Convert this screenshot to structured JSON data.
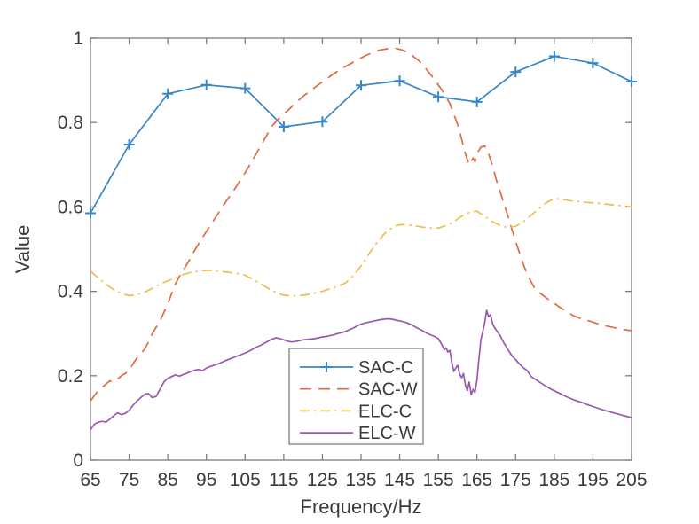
{
  "figure": {
    "background": "#ffffff",
    "axis_color": "#7c7c7c",
    "tick_text_color": "#3a3a3a",
    "label_text_color": "#3a3a3a",
    "legend_border_color": "#7c7c7c",
    "legend_background": "#ffffff"
  },
  "chart_data": {
    "type": "line",
    "title": "",
    "xlabel": "Frequency/Hz",
    "ylabel": "Value",
    "xlim": [
      65,
      205
    ],
    "ylim": [
      0,
      1
    ],
    "xticks": [
      65,
      75,
      85,
      95,
      105,
      115,
      125,
      135,
      145,
      155,
      165,
      175,
      185,
      195,
      205
    ],
    "xtick_labels": [
      "65",
      "75",
      "85",
      "95",
      "105",
      "115",
      "125",
      "135",
      "145",
      "155",
      "165",
      "175",
      "185",
      "195",
      "205"
    ],
    "yticks": [
      0,
      0.2,
      0.4,
      0.6,
      0.8,
      1
    ],
    "ytick_labels": [
      "0",
      "0.2",
      "0.4",
      "0.6",
      "0.8",
      "1"
    ],
    "grid": false,
    "box": true,
    "tick_direction": "in",
    "legend": {
      "position": "inside-bottom-center",
      "border": true,
      "entries": [
        "SAC-C",
        "SAC-W",
        "ELC-C",
        "ELC-W"
      ]
    },
    "series": [
      {
        "name": "SAC-C",
        "color": "#3787c9",
        "line_style": "solid",
        "marker": "plus",
        "x": [
          65,
          75,
          85,
          95,
          105,
          115,
          125,
          135,
          145,
          155,
          165,
          175,
          185,
          195,
          205
        ],
        "y": [
          0.585,
          0.748,
          0.868,
          0.889,
          0.881,
          0.79,
          0.802,
          0.888,
          0.899,
          0.861,
          0.849,
          0.92,
          0.957,
          0.941,
          0.897
        ]
      },
      {
        "name": "SAC-W",
        "color": "#e06a42",
        "line_style": "dashed",
        "marker": "none",
        "x": [
          65,
          66,
          67,
          68,
          69,
          70,
          71,
          72,
          73,
          74,
          75,
          76,
          77,
          78,
          79,
          80,
          81,
          82,
          83,
          84,
          85,
          86,
          87,
          88,
          89,
          90,
          91,
          92,
          94,
          96,
          98,
          100,
          102,
          104,
          106,
          108,
          110,
          112,
          114,
          116,
          118,
          120,
          122,
          124,
          126,
          128,
          130,
          132,
          134,
          136,
          138,
          140,
          142,
          144,
          146,
          148,
          150,
          152,
          154,
          156,
          158,
          160,
          161,
          162,
          163,
          164,
          164.5,
          165,
          166,
          167,
          168,
          169,
          170,
          171,
          172,
          173,
          174,
          175,
          176,
          177,
          178,
          179,
          180,
          181,
          182,
          183,
          184,
          185,
          186,
          187,
          188,
          190,
          192,
          194,
          196,
          198,
          200,
          202,
          204,
          205
        ],
        "y": [
          0.14,
          0.153,
          0.165,
          0.172,
          0.18,
          0.188,
          0.185,
          0.192,
          0.2,
          0.205,
          0.213,
          0.228,
          0.242,
          0.252,
          0.263,
          0.28,
          0.3,
          0.315,
          0.33,
          0.35,
          0.37,
          0.395,
          0.418,
          0.435,
          0.45,
          0.465,
          0.48,
          0.498,
          0.528,
          0.556,
          0.584,
          0.612,
          0.638,
          0.666,
          0.696,
          0.728,
          0.76,
          0.792,
          0.812,
          0.828,
          0.846,
          0.862,
          0.876,
          0.89,
          0.903,
          0.916,
          0.928,
          0.938,
          0.948,
          0.958,
          0.966,
          0.972,
          0.975,
          0.976,
          0.971,
          0.961,
          0.946,
          0.925,
          0.902,
          0.876,
          0.845,
          0.795,
          0.762,
          0.726,
          0.7,
          0.716,
          0.706,
          0.726,
          0.742,
          0.745,
          0.726,
          0.698,
          0.664,
          0.636,
          0.608,
          0.578,
          0.548,
          0.519,
          0.491,
          0.464,
          0.441,
          0.423,
          0.406,
          0.398,
          0.391,
          0.384,
          0.378,
          0.372,
          0.365,
          0.359,
          0.353,
          0.342,
          0.335,
          0.33,
          0.324,
          0.319,
          0.315,
          0.311,
          0.308,
          0.307
        ]
      },
      {
        "name": "ELC-C",
        "color": "#f0bd49",
        "line_style": "dashdot",
        "marker": "none",
        "x": [
          65,
          67,
          69,
          71,
          73,
          75,
          77,
          79,
          81,
          83,
          85,
          87,
          89,
          91,
          93,
          95,
          97,
          99,
          101,
          103,
          105,
          107,
          109,
          111,
          113,
          115,
          117,
          119,
          121,
          123,
          125,
          127,
          129,
          131,
          133,
          135,
          137,
          139,
          141,
          143,
          145,
          147,
          149,
          151,
          153,
          155,
          157,
          159,
          161,
          163,
          165,
          167,
          169,
          171,
          173,
          175,
          177,
          179,
          181,
          183,
          185,
          187,
          189,
          191,
          193,
          195,
          197,
          199,
          201,
          203,
          205
        ],
        "y": [
          0.448,
          0.432,
          0.417,
          0.404,
          0.395,
          0.39,
          0.392,
          0.398,
          0.407,
          0.417,
          0.425,
          0.432,
          0.44,
          0.445,
          0.448,
          0.45,
          0.449,
          0.447,
          0.445,
          0.442,
          0.438,
          0.429,
          0.418,
          0.407,
          0.397,
          0.391,
          0.389,
          0.39,
          0.392,
          0.396,
          0.4,
          0.406,
          0.412,
          0.42,
          0.437,
          0.46,
          0.488,
          0.514,
          0.536,
          0.551,
          0.558,
          0.558,
          0.555,
          0.552,
          0.55,
          0.55,
          0.556,
          0.565,
          0.578,
          0.587,
          0.59,
          0.578,
          0.565,
          0.556,
          0.551,
          0.554,
          0.565,
          0.58,
          0.596,
          0.61,
          0.62,
          0.618,
          0.615,
          0.613,
          0.611,
          0.61,
          0.608,
          0.606,
          0.604,
          0.602,
          0.6
        ]
      },
      {
        "name": "ELC-W",
        "color": "#9b59ae",
        "line_style": "solid",
        "marker": "none",
        "x": [
          65,
          66,
          67,
          68,
          69,
          70,
          71,
          72,
          73,
          74,
          75,
          76,
          77,
          78,
          79,
          80,
          81,
          82,
          83,
          84,
          85,
          86,
          87,
          88,
          89,
          90,
          91,
          92,
          93,
          94,
          95,
          96,
          97,
          98,
          99,
          100,
          101,
          102,
          103,
          104,
          105,
          106,
          107,
          108,
          109,
          110,
          111,
          112,
          113,
          114,
          115,
          116,
          117,
          118,
          119,
          120,
          121,
          122,
          123,
          124,
          125,
          126,
          127,
          128,
          129,
          130,
          131,
          132,
          133,
          134,
          135,
          136,
          137,
          138,
          139,
          140,
          141,
          142,
          143,
          144,
          145,
          146,
          147,
          148,
          149,
          150,
          151,
          152,
          153,
          154,
          155,
          155.5,
          156,
          156.5,
          157,
          157.5,
          158,
          158.5,
          159,
          159.5,
          160,
          160.5,
          161,
          161.5,
          162,
          162.5,
          163,
          163.5,
          164,
          164.5,
          165,
          165.5,
          166,
          166.5,
          167,
          167.5,
          168,
          168.5,
          169,
          169.5,
          170,
          171,
          172,
          173,
          174,
          175,
          176,
          177,
          178,
          179,
          180,
          182,
          184,
          186,
          188,
          190,
          192,
          194,
          196,
          198,
          200,
          202,
          204,
          205
        ],
        "y": [
          0.072,
          0.085,
          0.09,
          0.092,
          0.09,
          0.097,
          0.105,
          0.112,
          0.108,
          0.111,
          0.118,
          0.13,
          0.14,
          0.148,
          0.156,
          0.158,
          0.148,
          0.151,
          0.168,
          0.185,
          0.194,
          0.198,
          0.202,
          0.199,
          0.203,
          0.206,
          0.21,
          0.213,
          0.215,
          0.212,
          0.218,
          0.222,
          0.225,
          0.228,
          0.232,
          0.236,
          0.24,
          0.243,
          0.247,
          0.25,
          0.254,
          0.258,
          0.263,
          0.268,
          0.272,
          0.277,
          0.282,
          0.287,
          0.29,
          0.288,
          0.285,
          0.282,
          0.28,
          0.281,
          0.283,
          0.285,
          0.286,
          0.287,
          0.288,
          0.29,
          0.292,
          0.293,
          0.295,
          0.297,
          0.3,
          0.302,
          0.305,
          0.309,
          0.313,
          0.318,
          0.322,
          0.325,
          0.327,
          0.329,
          0.331,
          0.333,
          0.334,
          0.335,
          0.334,
          0.332,
          0.33,
          0.328,
          0.325,
          0.321,
          0.316,
          0.311,
          0.306,
          0.301,
          0.297,
          0.293,
          0.288,
          0.28,
          0.272,
          0.262,
          0.266,
          0.256,
          0.26,
          0.23,
          0.21,
          0.218,
          0.225,
          0.205,
          0.195,
          0.205,
          0.178,
          0.165,
          0.185,
          0.155,
          0.168,
          0.16,
          0.19,
          0.24,
          0.285,
          0.305,
          0.325,
          0.355,
          0.34,
          0.345,
          0.325,
          0.315,
          0.308,
          0.295,
          0.277,
          0.262,
          0.248,
          0.238,
          0.228,
          0.219,
          0.212,
          0.198,
          0.192,
          0.18,
          0.169,
          0.16,
          0.151,
          0.143,
          0.137,
          0.13,
          0.124,
          0.118,
          0.113,
          0.108,
          0.103,
          0.101
        ]
      }
    ]
  }
}
